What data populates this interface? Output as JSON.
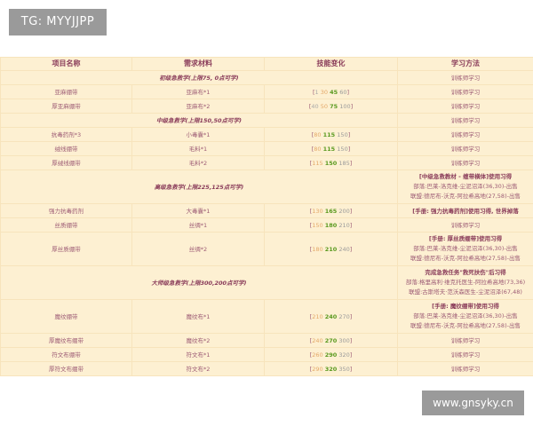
{
  "watermarks": {
    "top_left": "TG: MYYJJPP",
    "bottom_right": "www.gnsyky.cn"
  },
  "colors": {
    "table_bg": "#fdf0d2",
    "text": "#9c5a74",
    "skill_orange": "#e4a868",
    "skill_green": "#5a9a20",
    "skill_gray": "#9a9a9a"
  },
  "headers": [
    "项目名称",
    "需求材料",
    "技能变化",
    "学习方法"
  ],
  "rows": [
    {
      "type": "section",
      "title": "初级急救学(上限75, 0点可学)",
      "method": [
        "训练师学习"
      ]
    },
    {
      "type": "item",
      "name": "亚麻绷带",
      "material": "亚麻布*1",
      "skill": [
        "1",
        "30",
        "45",
        "60"
      ],
      "method": [
        "训练师学习"
      ]
    },
    {
      "type": "item",
      "name": "厚亚麻绷带",
      "material": "亚麻布*2",
      "skill": [
        "40",
        "50",
        "75",
        "100"
      ],
      "method": [
        "训练师学习"
      ]
    },
    {
      "type": "section",
      "title": "中级急救学(上限150,50点可学)",
      "method": [
        "训练师学习"
      ]
    },
    {
      "type": "item",
      "name": "抗毒药剂*3",
      "material": "小毒囊*1",
      "skill": [
        "80",
        "115",
        "150"
      ],
      "method": [
        "训练师学习"
      ]
    },
    {
      "type": "item",
      "name": "绒线绷带",
      "material": "毛料*1",
      "skill": [
        "80",
        "115",
        "150"
      ],
      "method": [
        "训练师学习"
      ]
    },
    {
      "type": "item",
      "name": "厚绒线绷带",
      "material": "毛料*2",
      "skill": [
        "115",
        "150",
        "185"
      ],
      "method": [
        "训练师学习"
      ]
    },
    {
      "type": "section",
      "title": "高级急救学(上限225,125点可学)",
      "method": [
        "[中级急救教材 - 缠带横体]使用习得",
        "部落:巴莱-洛克维-尘泥沼泽(36,30)-出售",
        "联盟:德尼布-沃克-阿拉希高地(27,58)-出售"
      ]
    },
    {
      "type": "item",
      "name": "强力抗毒药剂",
      "material": "大毒囊*1",
      "skill": [
        "130",
        "165",
        "200"
      ],
      "method": [
        "[手册: 强力抗毒药剂]使用习得, 世界掉落"
      ]
    },
    {
      "type": "item",
      "name": "丝质绷带",
      "material": "丝绸*1",
      "skill": [
        "150",
        "180",
        "210"
      ],
      "method": [
        "训练师学习"
      ]
    },
    {
      "type": "item",
      "name": "厚丝质绷带",
      "material": "丝绸*2",
      "skill": [
        "180",
        "210",
        "240"
      ],
      "method": [
        "[手册: 厚丝质绷带]使用习得",
        "部落:巴莱-洛克维-尘泥沼泽(36,30)-出售",
        "联盟:德尼布-沃克-阿拉希高地(27,58)-出售"
      ]
    },
    {
      "type": "section",
      "title": "大师级急救学(上限300,200点可学)",
      "method": [
        "完成急救任务\"救死扶伤\"后习得",
        "部落:格里高利·维克托医生-阿拉希高地(73,36)",
        "联盟:古斯塔夫·范沃森医生-尘泥沼泽(67,48)"
      ]
    },
    {
      "type": "item",
      "name": "魔纹绷带",
      "material": "魔纹布*1",
      "skill": [
        "210",
        "240",
        "270"
      ],
      "method": [
        "[手册: 魔纹绷带]使用习得",
        "部落:巴莱-洛克维-尘泥沼泽(36,30)-出售",
        "联盟:德尼布-沃克-阿拉希高地(27,58)-出售"
      ]
    },
    {
      "type": "item",
      "name": "厚魔纹布绷带",
      "material": "魔纹布*2",
      "skill": [
        "240",
        "270",
        "300"
      ],
      "method": [
        "训练师学习"
      ]
    },
    {
      "type": "item",
      "name": "符文布绷带",
      "material": "符文布*1",
      "skill": [
        "260",
        "290",
        "320"
      ],
      "method": [
        "训练师学习"
      ]
    },
    {
      "type": "item",
      "name": "厚符文布绷带",
      "material": "符文布*2",
      "skill": [
        "290",
        "320",
        "350"
      ],
      "method": [
        "训练师学习"
      ]
    }
  ]
}
